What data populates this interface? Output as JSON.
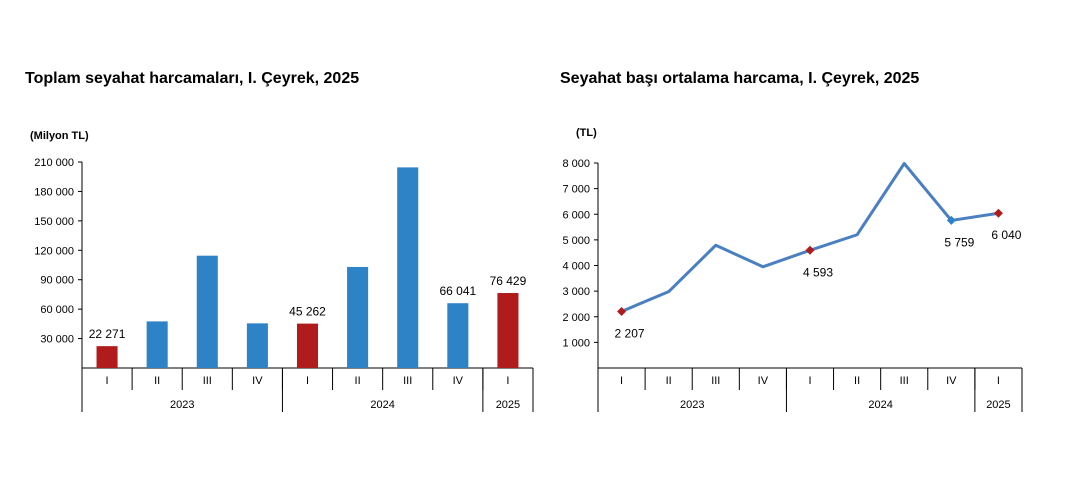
{
  "chart_data": [
    {
      "type": "bar",
      "title": "Toplam seyahat harcamaları, I. Çeyrek, 2025",
      "ylabel": "(Milyon TL)",
      "ylim": [
        0,
        210000
      ],
      "yticks": [
        "30 000",
        "60 000",
        "90 000",
        "120 000",
        "150 000",
        "180 000",
        "210 000"
      ],
      "ytick_values": [
        30000,
        60000,
        90000,
        120000,
        150000,
        180000,
        210000
      ],
      "categories": [
        "I",
        "II",
        "III",
        "IV",
        "I",
        "II",
        "III",
        "IV",
        "I"
      ],
      "years": [
        {
          "label": "2023",
          "span": 4
        },
        {
          "label": "2024",
          "span": 4
        },
        {
          "label": "2025",
          "span": 1
        }
      ],
      "values": [
        22271,
        47500,
        114500,
        45500,
        45262,
        103000,
        204500,
        66041,
        76429
      ],
      "highlight": [
        true,
        false,
        false,
        false,
        true,
        false,
        false,
        false,
        true
      ],
      "data_labels": [
        "22 271",
        "",
        "",
        "",
        "45 262",
        "",
        "",
        "66 041",
        "76 429"
      ],
      "colors": {
        "normal": "#2e82c6",
        "highlight": "#b01c1c"
      },
      "grid": false
    },
    {
      "type": "line",
      "title": "Seyahat başı ortalama harcama, I. Çeyrek, 2025",
      "ylabel": "(TL)",
      "ylim": [
        0,
        8000
      ],
      "yticks": [
        "1 000",
        "2 000",
        "3 000",
        "4 000",
        "5 000",
        "6 000",
        "7 000",
        "8 000"
      ],
      "ytick_values": [
        1000,
        2000,
        3000,
        4000,
        5000,
        6000,
        7000,
        8000
      ],
      "categories": [
        "I",
        "II",
        "III",
        "IV",
        "I",
        "II",
        "III",
        "IV",
        "I"
      ],
      "years": [
        {
          "label": "2023",
          "span": 4
        },
        {
          "label": "2024",
          "span": 4
        },
        {
          "label": "2025",
          "span": 1
        }
      ],
      "values": [
        2207,
        2980,
        4790,
        3950,
        4593,
        5200,
        7980,
        5759,
        6040
      ],
      "markers": [
        "red",
        "none",
        "none",
        "none",
        "red",
        "none",
        "none",
        "blue",
        "red"
      ],
      "data_labels": [
        "2 207",
        "",
        "",
        "",
        "4 593",
        "",
        "",
        "5 759",
        "6 040"
      ],
      "colors": {
        "line": "#4a7fc1",
        "marker_red": "#b01c1c",
        "marker_blue": "#2e82c6"
      },
      "grid": false
    }
  ]
}
